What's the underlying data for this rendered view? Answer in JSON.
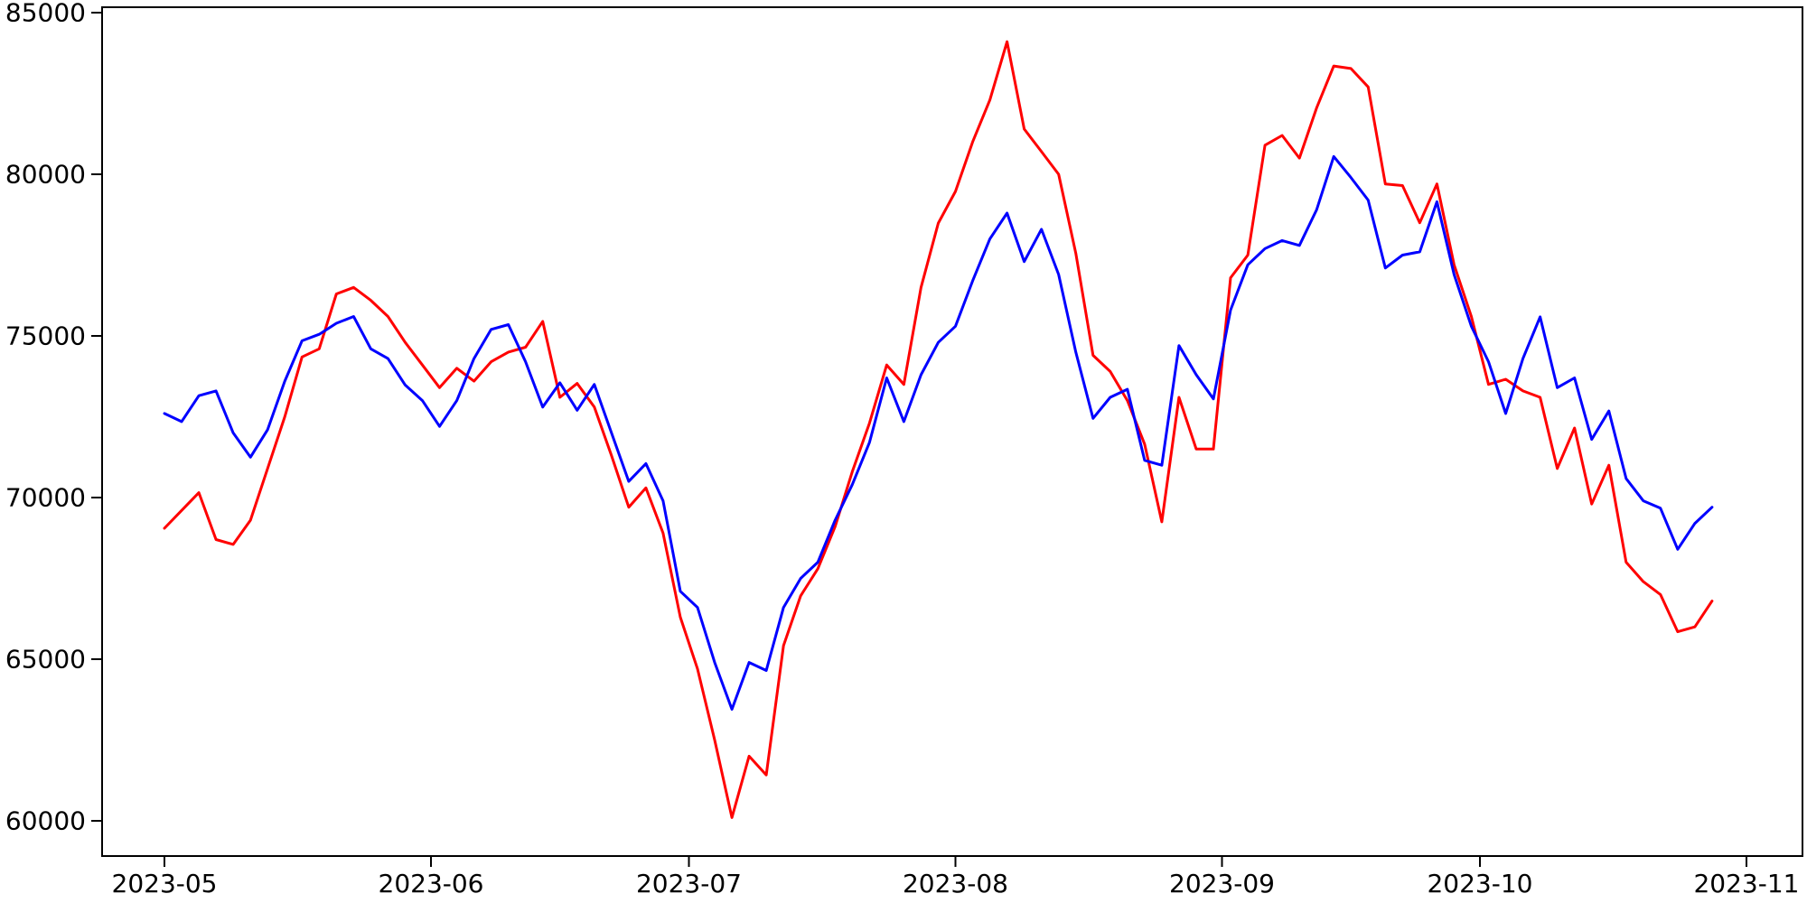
{
  "chart_data": {
    "type": "line",
    "title": "",
    "xlabel": "",
    "ylabel": "",
    "grid": false,
    "legend_position": "none",
    "background_color": "#ffffff",
    "spine_color": "#000000",
    "x_start_date": "2023-05-01",
    "x_step_days": 2,
    "x_total_days": 184,
    "xlim_days": [
      -7.3,
      190.6
    ],
    "ylim": [
      58900,
      85200
    ],
    "yticks": [
      {
        "value": 60000,
        "label": "60000"
      },
      {
        "value": 65000,
        "label": "65000"
      },
      {
        "value": 70000,
        "label": "70000"
      },
      {
        "value": 75000,
        "label": "75000"
      },
      {
        "value": 80000,
        "label": "80000"
      },
      {
        "value": 85000,
        "label": "85000"
      }
    ],
    "xticks": [
      {
        "day": 0,
        "label": "2023-05"
      },
      {
        "day": 31,
        "label": "2023-06"
      },
      {
        "day": 61,
        "label": "2023-07"
      },
      {
        "day": 92,
        "label": "2023-08"
      },
      {
        "day": 123,
        "label": "2023-09"
      },
      {
        "day": 153,
        "label": "2023-10"
      },
      {
        "day": 184,
        "label": "2023-11"
      }
    ],
    "series": [
      {
        "name": "red-series",
        "color": "#ff0000",
        "line_width": 3,
        "values": [
          69050,
          69600,
          70150,
          68700,
          68550,
          69300,
          70900,
          72500,
          74350,
          74600,
          76300,
          76500,
          76100,
          75600,
          74800,
          74100,
          73400,
          74000,
          73600,
          74200,
          74500,
          74650,
          75450,
          73100,
          73530,
          72800,
          71300,
          69700,
          70300,
          68900,
          66300,
          64700,
          62500,
          60100,
          62000,
          61420,
          65420,
          66960,
          67800,
          69100,
          70800,
          72300,
          74100,
          73500,
          76500,
          78490,
          79470,
          81000,
          82300,
          84100,
          81400,
          80700,
          80000,
          77560,
          74400,
          73900,
          73000,
          71650,
          69250,
          73100,
          71500,
          71500,
          76800,
          77500,
          80900,
          81200,
          80500,
          82050,
          83350,
          83270,
          82700,
          79700,
          79650,
          78500,
          79700,
          77200,
          75600,
          73500,
          73660,
          73300,
          73100,
          70900,
          72150,
          69800,
          71000,
          68000,
          67400,
          67000,
          65850,
          66000,
          66800
        ]
      },
      {
        "name": "blue-series",
        "color": "#0000ff",
        "line_width": 3,
        "values": [
          72600,
          72350,
          73150,
          73300,
          72000,
          71250,
          72100,
          73600,
          74850,
          75050,
          75390,
          75600,
          74600,
          74300,
          73480,
          73000,
          72200,
          73000,
          74300,
          75200,
          75350,
          74200,
          72800,
          73550,
          72700,
          73500,
          72000,
          70500,
          71050,
          69900,
          67100,
          66600,
          64900,
          63450,
          64900,
          64650,
          66600,
          67500,
          68000,
          69300,
          70400,
          71700,
          73700,
          72350,
          73800,
          74800,
          75300,
          76700,
          78000,
          78800,
          77300,
          78300,
          76900,
          74500,
          72450,
          73100,
          73350,
          71150,
          71000,
          74700,
          73800,
          73050,
          75800,
          77200,
          77700,
          77950,
          77800,
          78900,
          80550,
          79900,
          79200,
          77100,
          77500,
          77600,
          79150,
          76900,
          75300,
          74200,
          72600,
          74300,
          75590,
          73400,
          73700,
          71800,
          72680,
          70590,
          69900,
          69670,
          68400,
          69200,
          69700
        ]
      }
    ]
  },
  "layout_meta": {
    "tick_font_size": 28,
    "tick_length": 12
  }
}
